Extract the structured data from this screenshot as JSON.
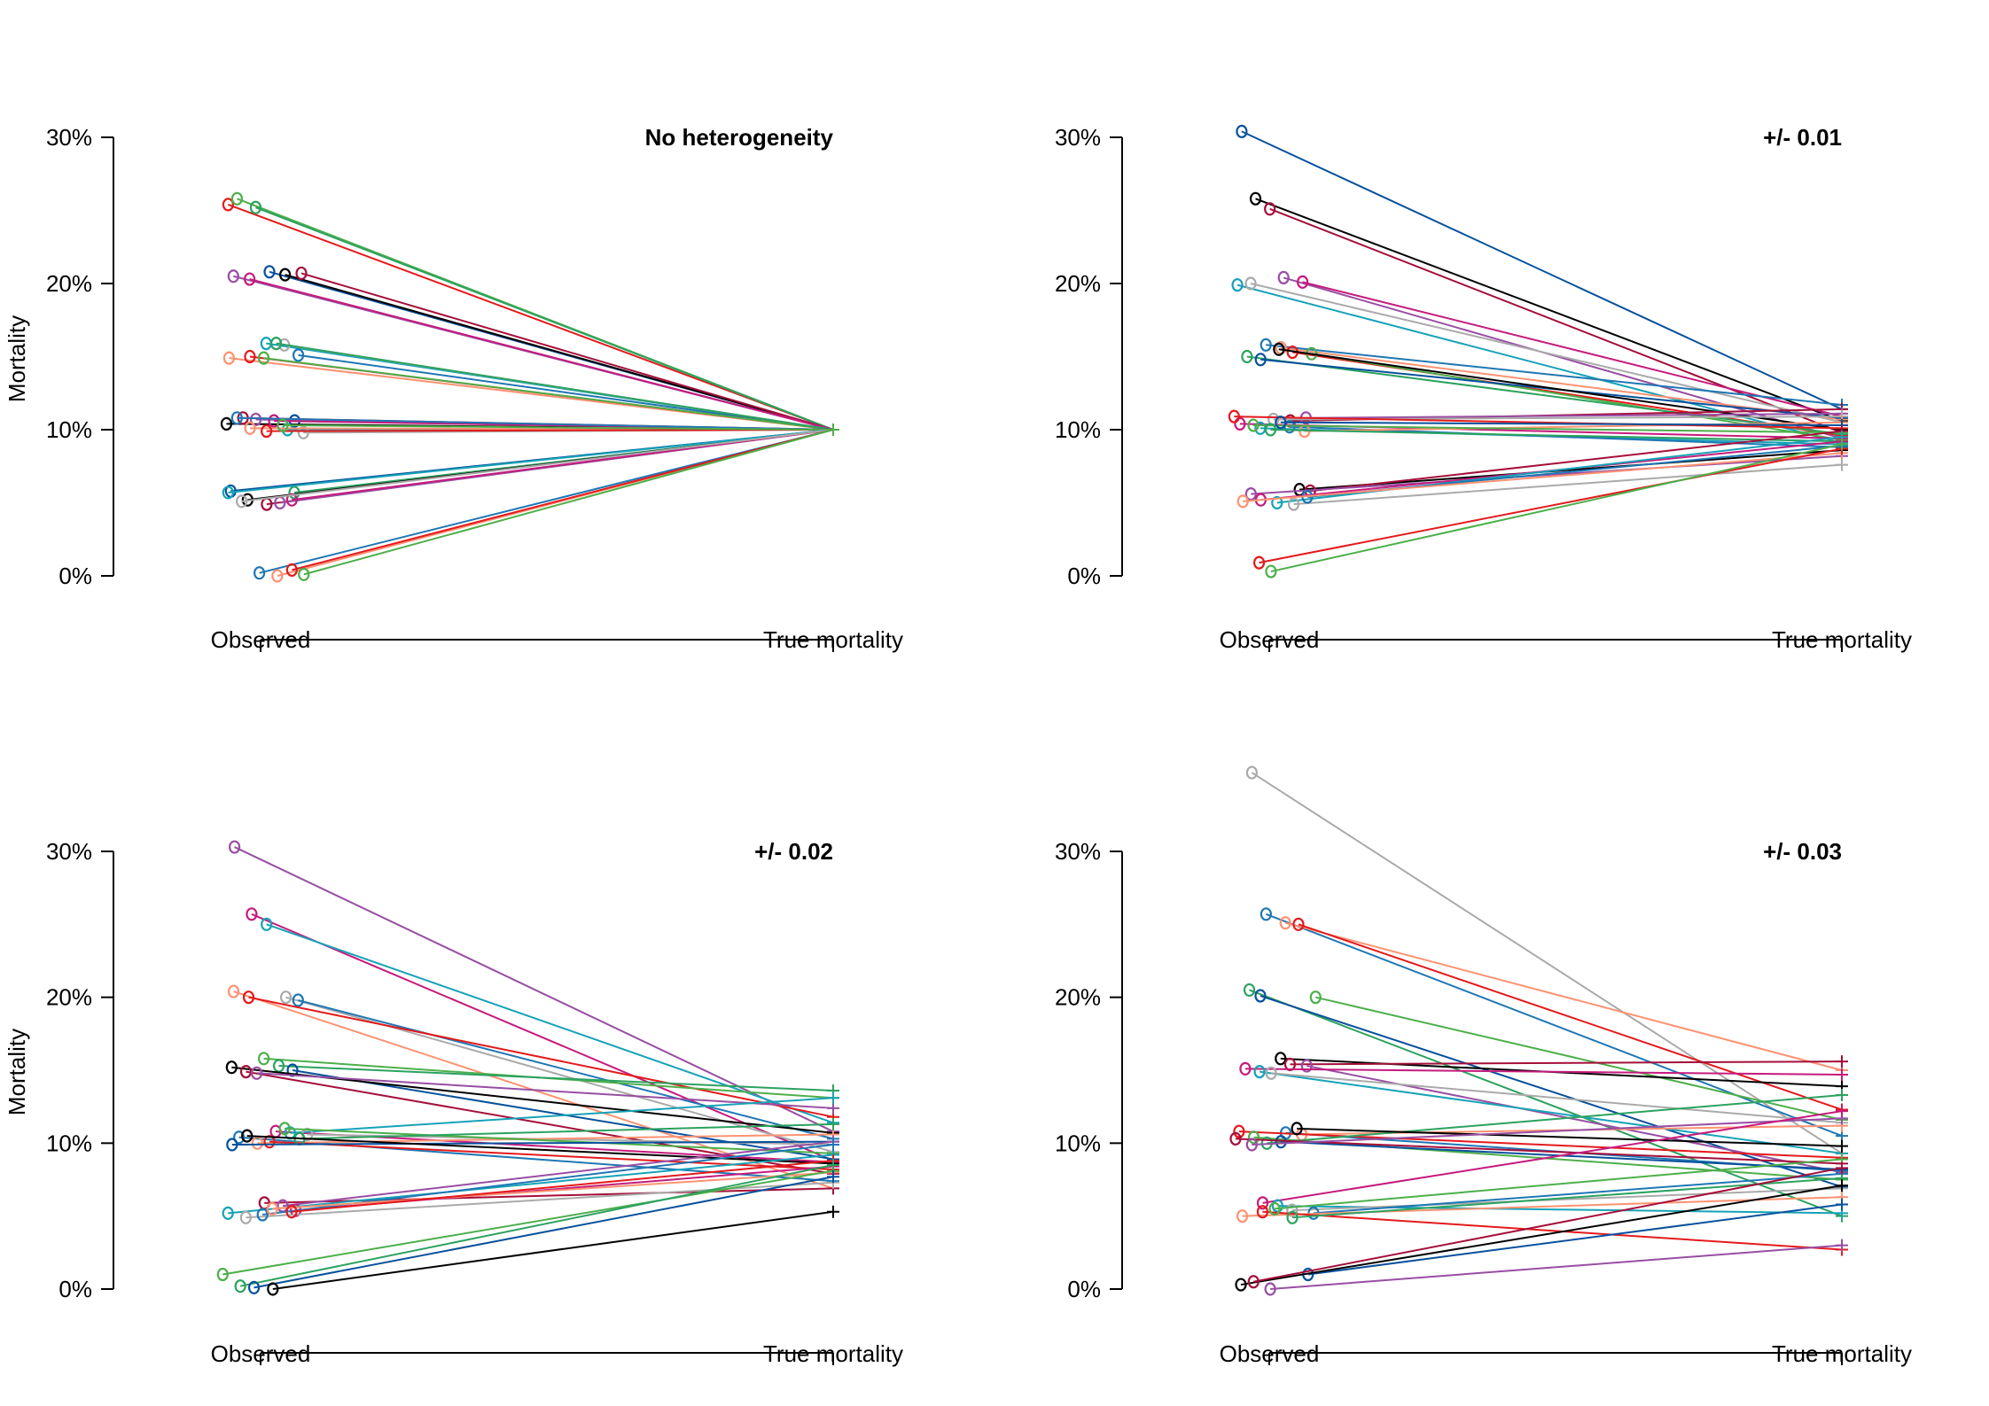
{
  "figure": {
    "palette": [
      "#e41a1c",
      "#a50f3a",
      "#1f77b4",
      "#08519c",
      "#17a2b8",
      "#4daf4a",
      "#984ea3",
      "#fc9272",
      "#000000",
      "#aaaaaa",
      "#2ca25f",
      "#c51b7d"
    ],
    "obs_label": "Observed",
    "true_label": "True mortality",
    "y_ticks": [
      "0%",
      "10%",
      "20%",
      "30%"
    ],
    "ylabel": "Mortality"
  },
  "chart_data": [
    {
      "type": "line",
      "title": "No heterogeneity",
      "ylabel": "Mortality",
      "categories": [
        "Observed",
        "True mortality"
      ],
      "ylim": [
        0,
        0.3
      ],
      "y_ticks": [
        "0%",
        "10%",
        "20%",
        "30%"
      ],
      "series": [
        {
          "values": [
            0.254,
            0.1
          ]
        },
        {
          "values": [
            0.258,
            0.1
          ]
        },
        {
          "values": [
            0.252,
            0.1
          ]
        },
        {
          "values": [
            0.208,
            0.1
          ]
        },
        {
          "values": [
            0.206,
            0.1
          ]
        },
        {
          "values": [
            0.207,
            0.1
          ]
        },
        {
          "values": [
            0.205,
            0.1
          ]
        },
        {
          "values": [
            0.203,
            0.1
          ]
        },
        {
          "values": [
            0.159,
            0.1
          ]
        },
        {
          "values": [
            0.158,
            0.1
          ]
        },
        {
          "values": [
            0.151,
            0.1
          ]
        },
        {
          "values": [
            0.149,
            0.1
          ]
        },
        {
          "values": [
            0.15,
            0.1
          ]
        },
        {
          "values": [
            0.149,
            0.1
          ]
        },
        {
          "values": [
            0.159,
            0.1
          ]
        },
        {
          "values": [
            0.106,
            0.1
          ]
        },
        {
          "values": [
            0.104,
            0.1
          ]
        },
        {
          "values": [
            0.108,
            0.1
          ]
        },
        {
          "values": [
            0.107,
            0.1
          ]
        },
        {
          "values": [
            0.106,
            0.1
          ]
        },
        {
          "values": [
            0.1,
            0.1
          ]
        },
        {
          "values": [
            0.098,
            0.1
          ]
        },
        {
          "values": [
            0.108,
            0.1
          ]
        },
        {
          "values": [
            0.101,
            0.1
          ]
        },
        {
          "values": [
            0.099,
            0.1
          ]
        },
        {
          "values": [
            0.103,
            0.1
          ]
        },
        {
          "values": [
            0.057,
            0.1
          ]
        },
        {
          "values": [
            0.058,
            0.1
          ]
        },
        {
          "values": [
            0.052,
            0.1
          ]
        },
        {
          "values": [
            0.049,
            0.1
          ]
        },
        {
          "values": [
            0.05,
            0.1
          ]
        },
        {
          "values": [
            0.052,
            0.1
          ]
        },
        {
          "values": [
            0.057,
            0.1
          ]
        },
        {
          "values": [
            0.051,
            0.1
          ]
        },
        {
          "values": [
            0.002,
            0.1
          ]
        },
        {
          "values": [
            0.0,
            0.1
          ]
        },
        {
          "values": [
            0.004,
            0.1
          ]
        },
        {
          "values": [
            0.001,
            0.1
          ]
        }
      ]
    },
    {
      "type": "line",
      "title": "+/- 0.01",
      "categories": [
        "Observed",
        "True mortality"
      ],
      "ylim": [
        0,
        0.3
      ],
      "y_ticks": [
        "0%",
        "10%",
        "20%",
        "30%"
      ],
      "series": [
        {
          "values": [
            0.304,
            0.114
          ]
        },
        {
          "values": [
            0.258,
            0.106
          ]
        },
        {
          "values": [
            0.251,
            0.098
          ]
        },
        {
          "values": [
            0.204,
            0.094
          ]
        },
        {
          "values": [
            0.201,
            0.109
          ]
        },
        {
          "values": [
            0.199,
            0.091
          ]
        },
        {
          "values": [
            0.2,
            0.105
          ]
        },
        {
          "values": [
            0.158,
            0.117
          ]
        },
        {
          "values": [
            0.156,
            0.107
          ]
        },
        {
          "values": [
            0.153,
            0.096
          ]
        },
        {
          "values": [
            0.152,
            0.093
          ]
        },
        {
          "values": [
            0.15,
            0.097
          ]
        },
        {
          "values": [
            0.148,
            0.108
          ]
        },
        {
          "values": [
            0.155,
            0.1
          ]
        },
        {
          "values": [
            0.106,
            0.114
          ]
        },
        {
          "values": [
            0.108,
            0.111
          ]
        },
        {
          "values": [
            0.104,
            0.094
          ]
        },
        {
          "values": [
            0.101,
            0.09
          ]
        },
        {
          "values": [
            0.107,
            0.109
          ]
        },
        {
          "values": [
            0.102,
            0.088
          ]
        },
        {
          "values": [
            0.099,
            0.105
          ]
        },
        {
          "values": [
            0.109,
            0.101
          ]
        },
        {
          "values": [
            0.103,
            0.098
          ]
        },
        {
          "values": [
            0.1,
            0.092
          ]
        },
        {
          "values": [
            0.105,
            0.103
          ]
        },
        {
          "values": [
            0.059,
            0.086
          ]
        },
        {
          "values": [
            0.058,
            0.099
          ]
        },
        {
          "values": [
            0.056,
            0.082
          ]
        },
        {
          "values": [
            0.052,
            0.092
          ]
        },
        {
          "values": [
            0.05,
            0.095
          ]
        },
        {
          "values": [
            0.049,
            0.076
          ]
        },
        {
          "values": [
            0.054,
            0.089
          ]
        },
        {
          "values": [
            0.051,
            0.084
          ]
        },
        {
          "values": [
            0.009,
            0.087
          ]
        },
        {
          "values": [
            0.003,
            0.09
          ]
        }
      ]
    },
    {
      "type": "line",
      "title": "+/- 0.02",
      "ylabel": "Mortality",
      "categories": [
        "Observed",
        "True mortality"
      ],
      "ylim": [
        0,
        0.3
      ],
      "y_ticks": [
        "0%",
        "10%",
        "20%",
        "30%"
      ],
      "series": [
        {
          "values": [
            0.303,
            0.108
          ]
        },
        {
          "values": [
            0.257,
            0.088
          ]
        },
        {
          "values": [
            0.25,
            0.114
          ]
        },
        {
          "values": [
            0.2,
            0.094
          ]
        },
        {
          "values": [
            0.198,
            0.103
          ]
        },
        {
          "values": [
            0.204,
            0.069
          ]
        },
        {
          "values": [
            0.2,
            0.118
          ]
        },
        {
          "values": [
            0.158,
            0.131
          ]
        },
        {
          "values": [
            0.153,
            0.136
          ]
        },
        {
          "values": [
            0.15,
            0.089
          ]
        },
        {
          "values": [
            0.152,
            0.107
          ]
        },
        {
          "values": [
            0.149,
            0.079
          ]
        },
        {
          "values": [
            0.148,
            0.124
          ]
        },
        {
          "values": [
            0.108,
            0.087
          ]
        },
        {
          "values": [
            0.107,
            0.131
          ]
        },
        {
          "values": [
            0.106,
            0.099
          ]
        },
        {
          "values": [
            0.104,
            0.074
          ]
        },
        {
          "values": [
            0.1,
            0.106
          ]
        },
        {
          "values": [
            0.101,
            0.082
          ]
        },
        {
          "values": [
            0.11,
            0.093
          ]
        },
        {
          "values": [
            0.103,
            0.113
          ]
        },
        {
          "values": [
            0.099,
            0.101
          ]
        },
        {
          "values": [
            0.105,
            0.086
          ]
        },
        {
          "values": [
            0.059,
            0.069
          ]
        },
        {
          "values": [
            0.057,
            0.101
          ]
        },
        {
          "values": [
            0.054,
            0.084
          ]
        },
        {
          "values": [
            0.052,
            0.092
          ]
        },
        {
          "values": [
            0.049,
            0.073
          ]
        },
        {
          "values": [
            0.051,
            0.099
          ]
        },
        {
          "values": [
            0.055,
            0.08
          ]
        },
        {
          "values": [
            0.053,
            0.088
          ]
        },
        {
          "values": [
            0.01,
            0.081
          ]
        },
        {
          "values": [
            0.002,
            0.085
          ]
        },
        {
          "values": [
            0.001,
            0.077
          ]
        },
        {
          "values": [
            0.0,
            0.053
          ]
        }
      ]
    },
    {
      "type": "line",
      "title": "+/- 0.03",
      "categories": [
        "Observed",
        "True mortality"
      ],
      "ylim": [
        0,
        0.3
      ],
      "y_ticks": [
        "0%",
        "10%",
        "20%",
        "30%"
      ],
      "series": [
        {
          "values": [
            0.354,
            0.093
          ]
        },
        {
          "values": [
            0.257,
            0.105
          ]
        },
        {
          "values": [
            0.251,
            0.15
          ]
        },
        {
          "values": [
            0.25,
            0.123
          ]
        },
        {
          "values": [
            0.2,
            0.116
          ]
        },
        {
          "values": [
            0.205,
            0.05
          ]
        },
        {
          "values": [
            0.201,
            0.07
          ]
        },
        {
          "values": [
            0.158,
            0.139
          ]
        },
        {
          "values": [
            0.154,
            0.156
          ]
        },
        {
          "values": [
            0.153,
            0.08
          ]
        },
        {
          "values": [
            0.151,
            0.147
          ]
        },
        {
          "values": [
            0.149,
            0.093
          ]
        },
        {
          "values": [
            0.148,
            0.114
          ]
        },
        {
          "values": [
            0.107,
            0.081
          ]
        },
        {
          "values": [
            0.106,
            0.112
          ]
        },
        {
          "values": [
            0.108,
            0.09
          ]
        },
        {
          "values": [
            0.104,
            0.075
          ]
        },
        {
          "values": [
            0.1,
            0.133
          ]
        },
        {
          "values": [
            0.101,
            0.082
          ]
        },
        {
          "values": [
            0.11,
            0.098
          ]
        },
        {
          "values": [
            0.103,
            0.086
          ]
        },
        {
          "values": [
            0.099,
            0.117
          ]
        },
        {
          "values": [
            0.059,
            0.122
          ]
        },
        {
          "values": [
            0.057,
            0.052
          ]
        },
        {
          "values": [
            0.054,
            0.069
          ]
        },
        {
          "values": [
            0.052,
            0.079
          ]
        },
        {
          "values": [
            0.05,
            0.063
          ]
        },
        {
          "values": [
            0.053,
            0.027
          ]
        },
        {
          "values": [
            0.055,
            0.089
          ]
        },
        {
          "values": [
            0.049,
            0.076
          ]
        },
        {
          "values": [
            0.01,
            0.058
          ]
        },
        {
          "values": [
            0.003,
            0.071
          ]
        },
        {
          "values": [
            0.005,
            0.083
          ]
        },
        {
          "values": [
            0.0,
            0.03
          ]
        }
      ]
    }
  ]
}
